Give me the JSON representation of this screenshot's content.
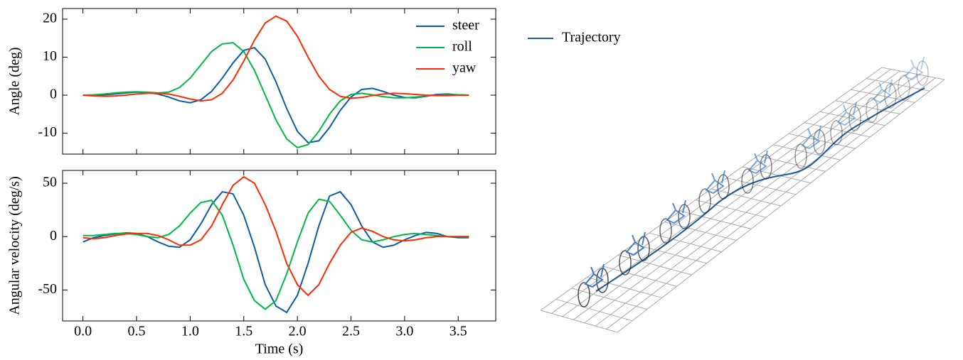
{
  "chart_data": [
    {
      "type": "line",
      "ylabel": "Angle (deg)",
      "x": [
        0,
        0.1,
        0.2,
        0.3,
        0.4,
        0.5,
        0.6,
        0.7,
        0.8,
        0.9,
        1,
        1.1,
        1.2,
        1.3,
        1.4,
        1.5,
        1.6,
        1.7,
        1.8,
        1.9,
        2,
        2.1,
        2.2,
        2.3,
        2.4,
        2.5,
        2.6,
        2.7,
        2.8,
        2.9,
        3,
        3.1,
        3.2,
        3.3,
        3.4,
        3.5,
        3.6
      ],
      "xlim": [
        -0.19,
        3.85
      ],
      "ylim": [
        -15.5,
        22.8
      ],
      "yticks": [
        -10,
        0,
        10,
        20
      ],
      "legend": "upper right",
      "series": [
        {
          "name": "steer",
          "color": "#0c5da5",
          "values": [
            0,
            0,
            0.1,
            0.3,
            0.6,
            0.8,
            0.7,
            0.3,
            -0.5,
            -1.5,
            -2.0,
            -1.2,
            1.0,
            4.5,
            8.5,
            11.8,
            12.5,
            9.5,
            3.5,
            -3.5,
            -9.5,
            -12.5,
            -12.0,
            -8.5,
            -4.0,
            -0.5,
            1.5,
            1.8,
            1.0,
            0,
            -0.6,
            -0.7,
            -0.3,
            0.2,
            0.3,
            0.1,
            0
          ]
        },
        {
          "name": "roll",
          "color": "#00b945",
          "values": [
            0,
            0.1,
            0.3,
            0.6,
            0.8,
            0.9,
            0.8,
            0.6,
            0.8,
            2.0,
            4.5,
            8.0,
            11.5,
            13.5,
            13.8,
            11.5,
            6.5,
            0,
            -6.5,
            -11.5,
            -13.8,
            -13.0,
            -9.5,
            -5.0,
            -1.5,
            0.2,
            0.5,
            0.1,
            -0.4,
            -0.7,
            -0.7,
            -0.5,
            -0.2,
            0,
            0.1,
            0.1,
            0
          ]
        },
        {
          "name": "yaw",
          "color": "#ff2c00",
          "values": [
            0,
            -0.2,
            -0.3,
            -0.2,
            0,
            0.3,
            0.5,
            0.5,
            0.3,
            -0.3,
            -1.0,
            -1.5,
            -1.2,
            0.5,
            4.0,
            9.0,
            14.5,
            19.0,
            20.8,
            19.5,
            15.5,
            10.0,
            5.0,
            1.5,
            -0.3,
            -0.8,
            -0.6,
            -0.1,
            0.3,
            0.5,
            0.4,
            0.2,
            0,
            -0.1,
            -0.1,
            0,
            0
          ]
        }
      ]
    },
    {
      "type": "line",
      "ylabel": "Angular velocity (deg/s)",
      "xlabel": "Time (s)",
      "x": [
        0,
        0.1,
        0.2,
        0.3,
        0.4,
        0.5,
        0.6,
        0.7,
        0.8,
        0.9,
        1,
        1.1,
        1.2,
        1.3,
        1.4,
        1.5,
        1.6,
        1.7,
        1.8,
        1.9,
        2,
        2.1,
        2.2,
        2.3,
        2.4,
        2.5,
        2.6,
        2.7,
        2.8,
        2.9,
        3,
        3.1,
        3.2,
        3.3,
        3.4,
        3.5,
        3.6
      ],
      "xlim": [
        -0.19,
        3.85
      ],
      "xticks": [
        {
          "value": 0,
          "label": "0.0"
        },
        0.5,
        {
          "value": 1,
          "label": "1.0"
        },
        1.5,
        {
          "value": 2,
          "label": "2.0"
        },
        2.5,
        {
          "value": 3,
          "label": "3.0"
        },
        3.5
      ],
      "ylim": [
        -79,
        62
      ],
      "yticks": [
        -50,
        0,
        50
      ],
      "series": [
        {
          "name": "steer",
          "color": "#0c5da5",
          "values": [
            -5,
            -1,
            1,
            2.5,
            3.5,
            3,
            0,
            -5,
            -9,
            -10,
            -3,
            12,
            30,
            42,
            40,
            20,
            -10,
            -45,
            -65,
            -71,
            -55,
            -25,
            10,
            38,
            42,
            30,
            10,
            -5,
            -10,
            -8,
            -3,
            1,
            4,
            3,
            0,
            -1,
            -1
          ]
        },
        {
          "name": "roll",
          "color": "#00b945",
          "values": [
            1,
            1,
            2,
            3,
            3,
            2,
            0,
            -1,
            2,
            10,
            22,
            32,
            34,
            20,
            -8,
            -40,
            -60,
            -68,
            -60,
            -35,
            -5,
            22,
            35,
            33,
            20,
            6,
            -3,
            -5,
            -3,
            0,
            2,
            3,
            2,
            1,
            0,
            0,
            0
          ]
        },
        {
          "name": "yaw",
          "color": "#ff2c00",
          "values": [
            -1,
            -2,
            -1,
            1,
            2.5,
            3,
            3,
            1,
            -3,
            -8,
            -8,
            -3,
            10,
            30,
            48,
            56,
            50,
            30,
            5,
            -25,
            -45,
            -55,
            -45,
            -25,
            -8,
            4,
            8,
            5,
            0,
            -3,
            -4,
            -3,
            -1,
            0,
            0,
            0,
            0
          ]
        }
      ]
    },
    {
      "type": "3d",
      "legend": "upper left",
      "series": [
        {
          "name": "Trajectory",
          "color": "#1f5a9a"
        }
      ]
    }
  ]
}
